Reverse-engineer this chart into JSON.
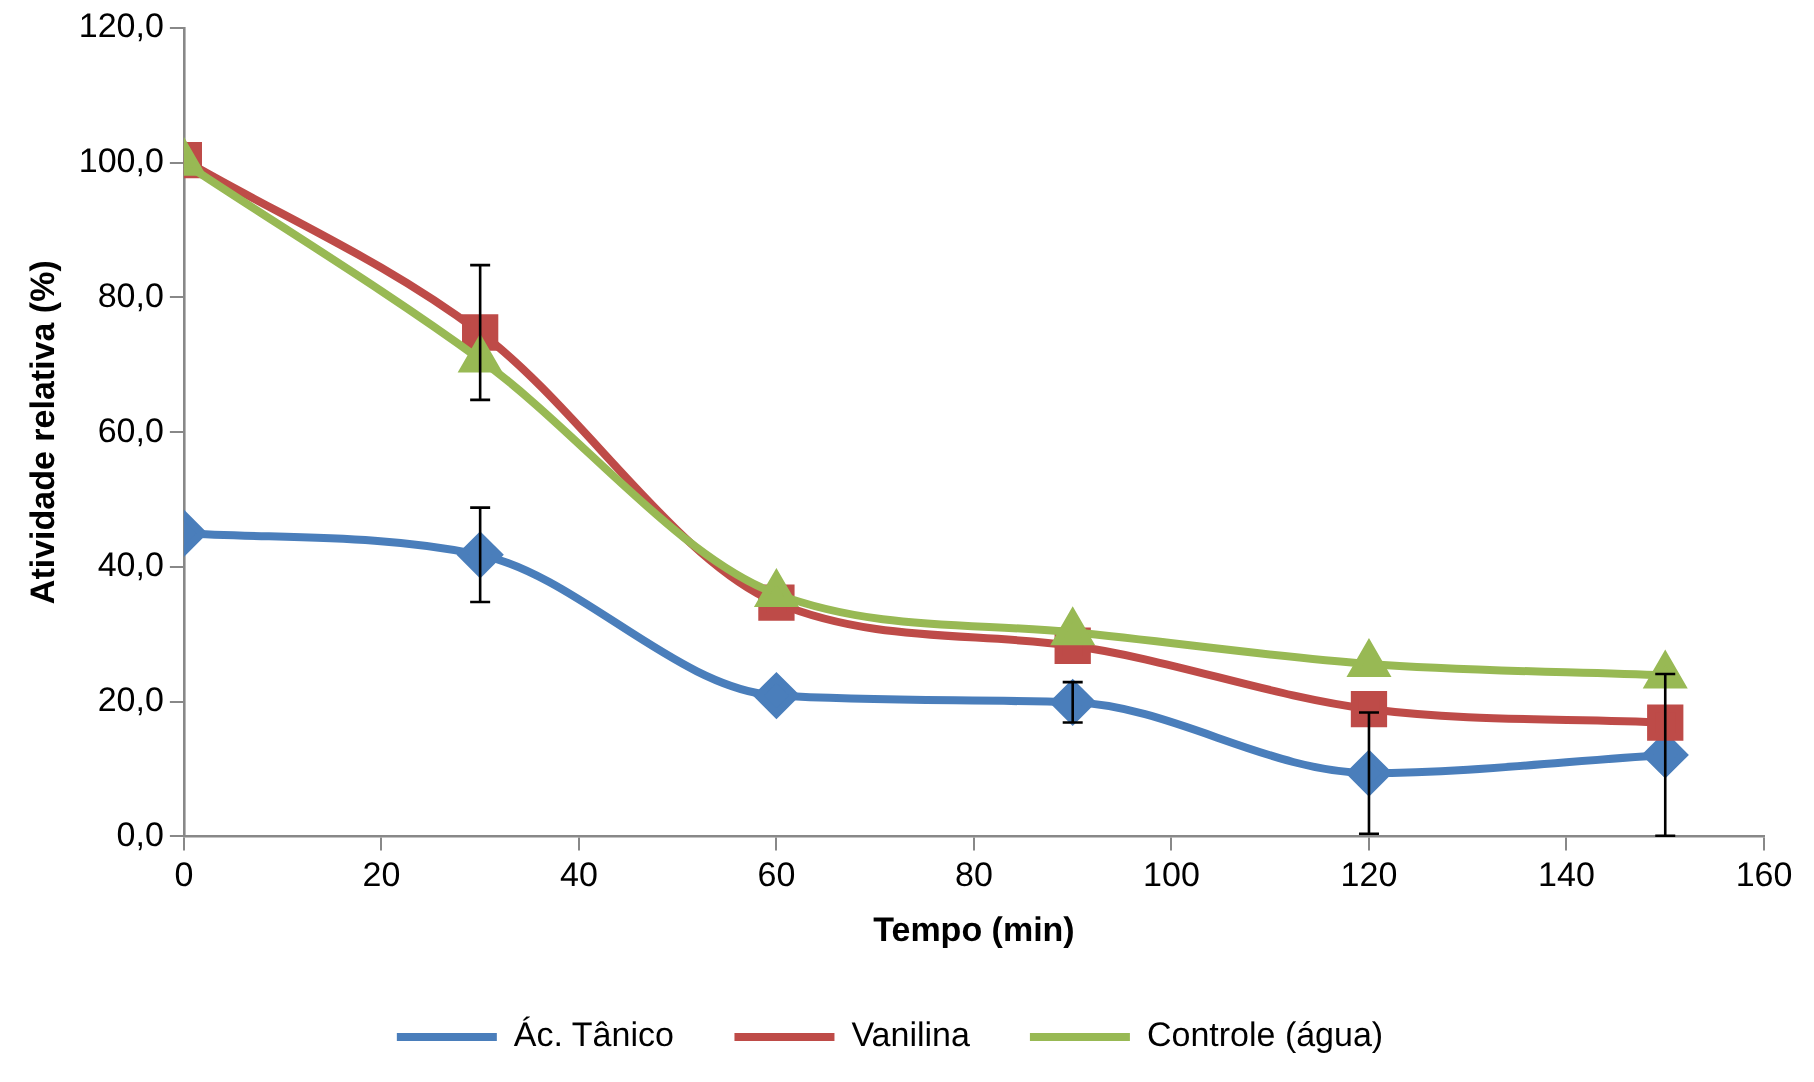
{
  "chart_data": {
    "type": "line",
    "xlabel": "Tempo (min)",
    "ylabel": "Atividade relativa (%)",
    "x": [
      0,
      30,
      60,
      90,
      120,
      150
    ],
    "xlim": [
      0,
      160
    ],
    "xticks": [
      0,
      20,
      40,
      60,
      80,
      100,
      120,
      140,
      160
    ],
    "ylim": [
      0,
      120
    ],
    "yticks": [
      {
        "value": 0,
        "label": "0,0"
      },
      {
        "value": 20,
        "label": "20,0"
      },
      {
        "value": 40,
        "label": "40,0"
      },
      {
        "value": 60,
        "label": "60,0"
      },
      {
        "value": 80,
        "label": "80,0"
      },
      {
        "value": 100,
        "label": "100,0"
      },
      {
        "value": 120,
        "label": "120,0"
      }
    ],
    "grid": false,
    "legend": "bottom",
    "series": [
      {
        "name": "Ác. Tânico",
        "color": "#4a7ebb",
        "marker": "diamond",
        "values": [
          45,
          41.8,
          20.9,
          19.9,
          9.4,
          12.1
        ],
        "errors": [
          null,
          7,
          null,
          3,
          9,
          12
        ]
      },
      {
        "name": "Vanilina",
        "color": "#be4b48",
        "marker": "square",
        "values": [
          100.4,
          74.8,
          34.7,
          28.3,
          18.9,
          16.9
        ],
        "errors": [
          null,
          10,
          null,
          null,
          null,
          null
        ]
      },
      {
        "name": "Controle (água)",
        "color": "#98b954",
        "marker": "triangle",
        "values": [
          100,
          70.8,
          36,
          30.3,
          25.6,
          23.9
        ]
      }
    ]
  }
}
